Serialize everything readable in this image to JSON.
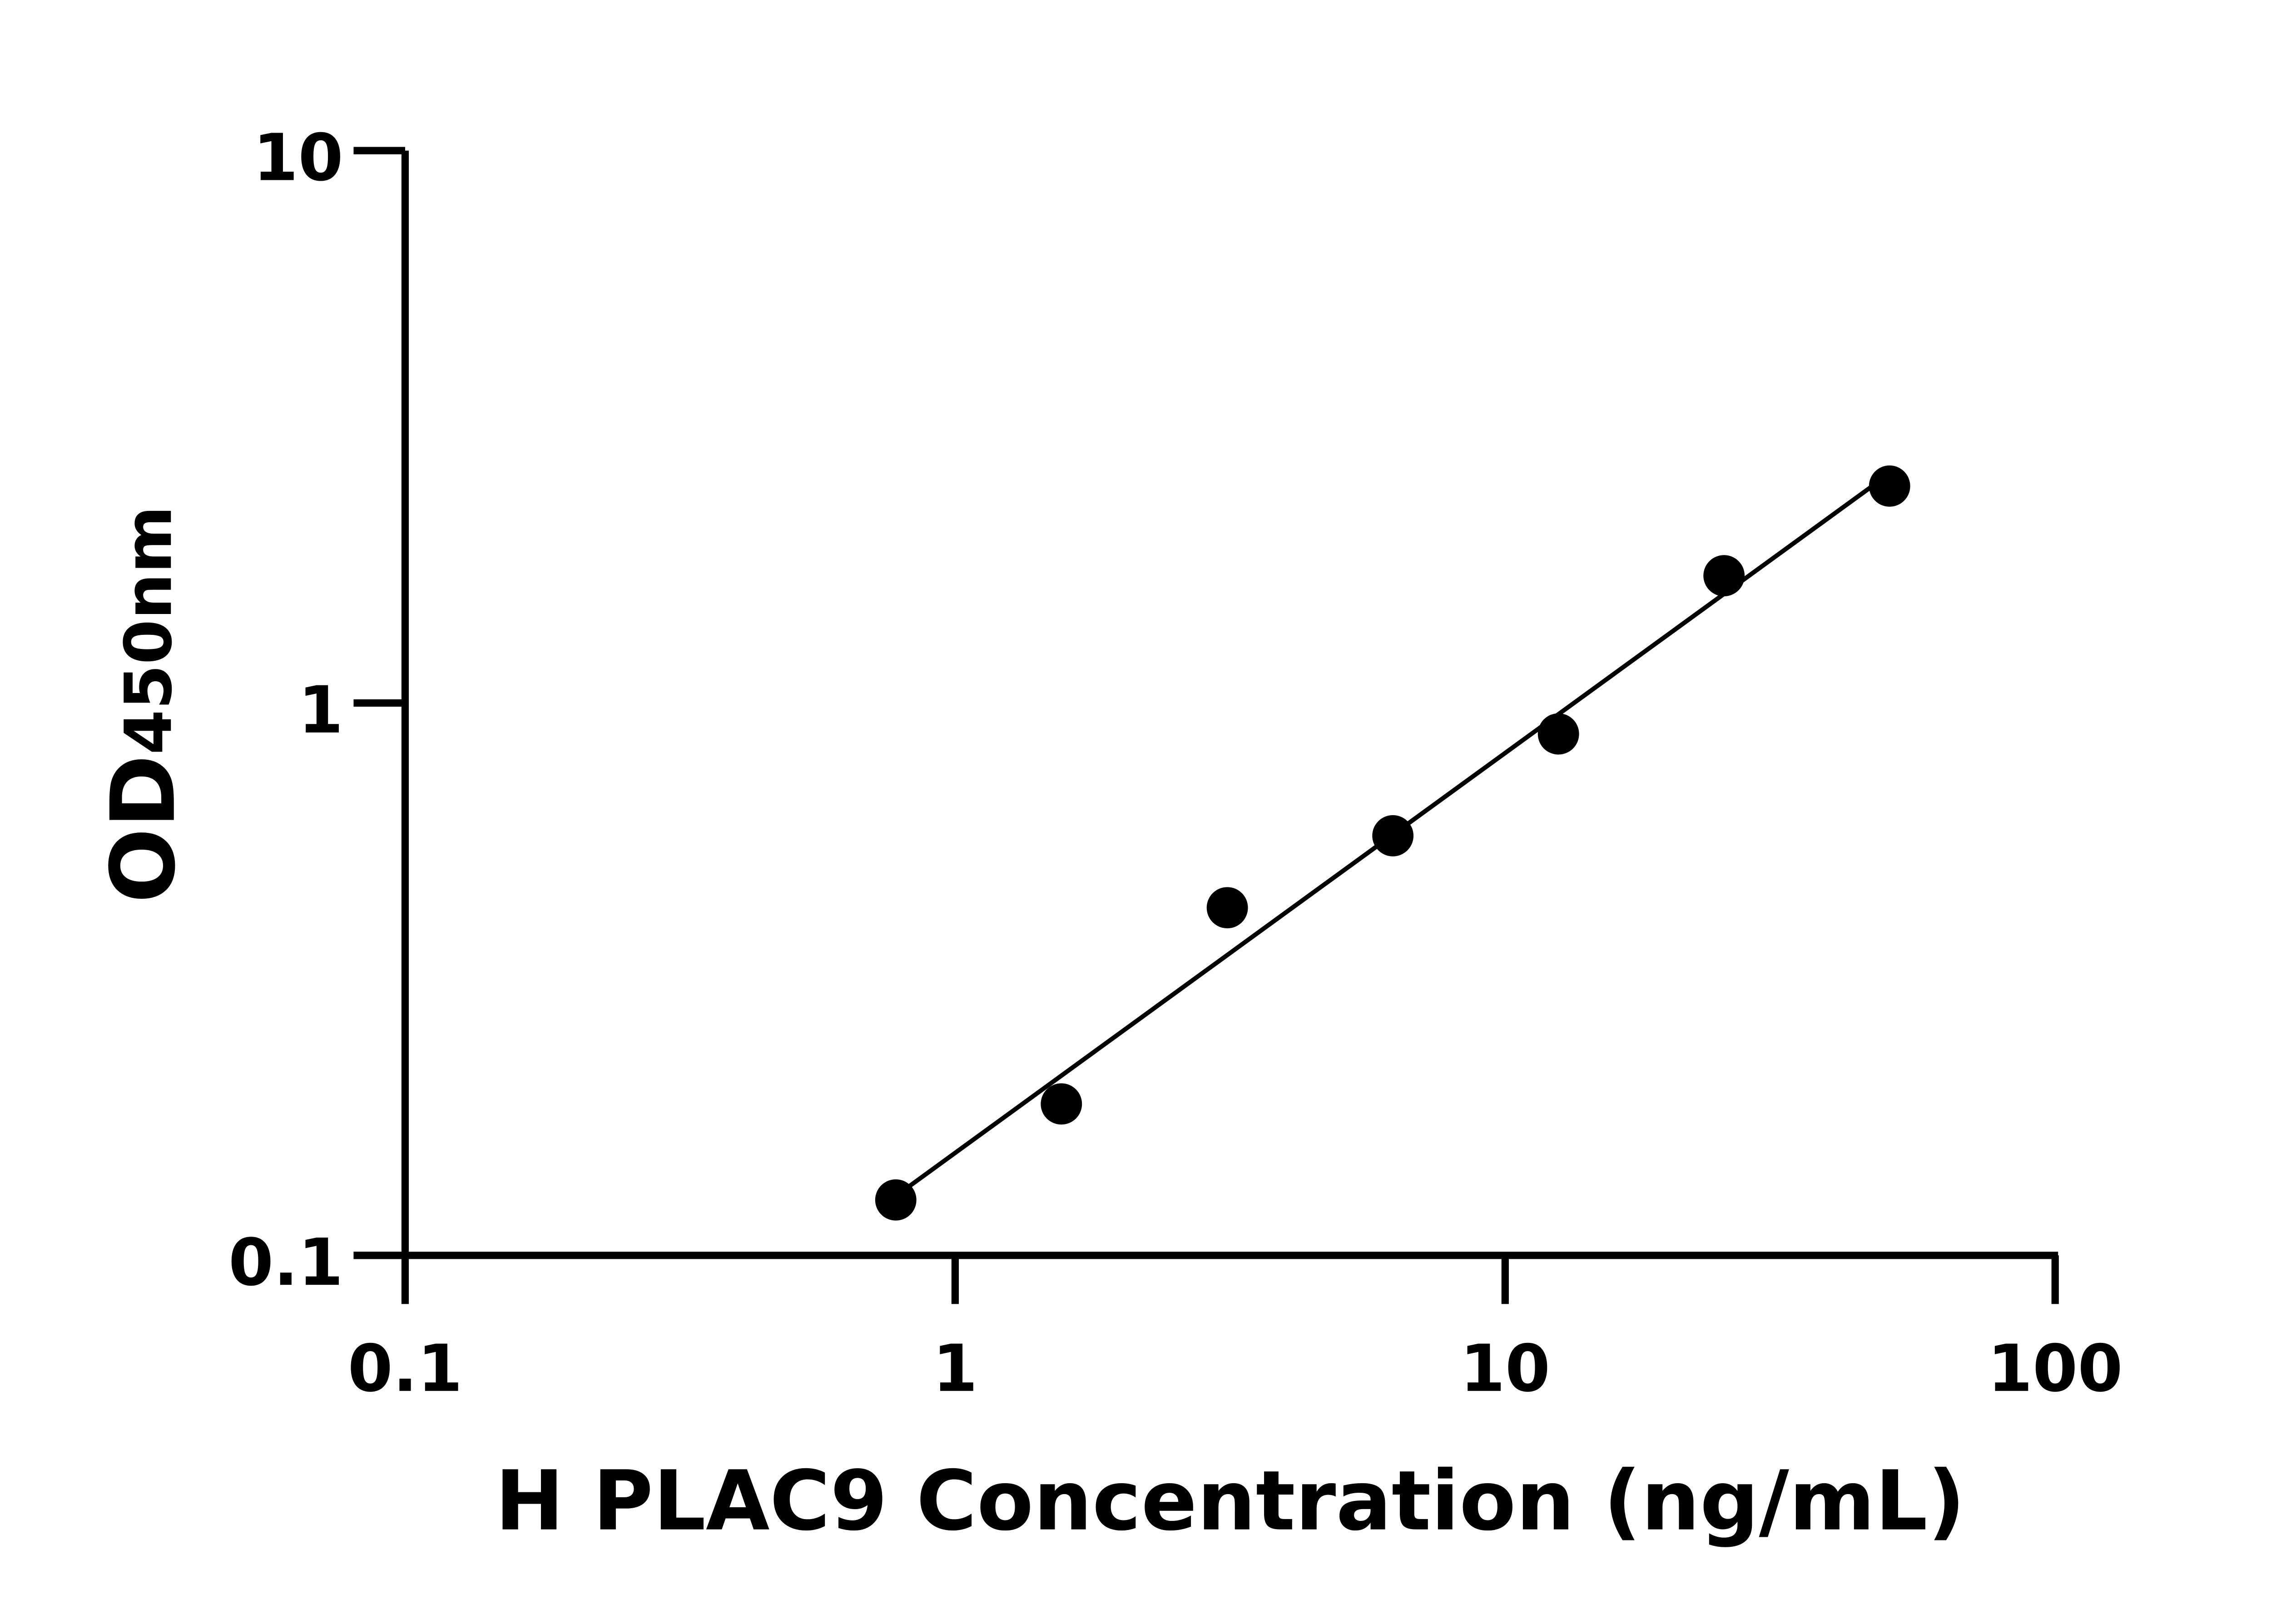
{
  "chart_data": {
    "type": "scatter",
    "title": "",
    "xlabel": "H PLAC9 Concentration (ng/mL)",
    "ylabel_main": "OD",
    "ylabel_sub": "450nm",
    "x_scale": "log",
    "y_scale": "log",
    "xlim": [
      0.1,
      100
    ],
    "ylim": [
      0.1,
      10
    ],
    "x_ticks": [
      "0.1",
      "1",
      "10",
      "100"
    ],
    "y_ticks": [
      "0.1",
      "1",
      "10"
    ],
    "x_tick_values": [
      0.1,
      1,
      10,
      100
    ],
    "y_tick_values": [
      0.1,
      1,
      10
    ],
    "grid": false,
    "legend": "none",
    "points": {
      "x": [
        0.78,
        1.56,
        3.125,
        6.25,
        12.5,
        25,
        50
      ],
      "y": [
        0.126,
        0.188,
        0.426,
        0.575,
        0.879,
        1.7,
        2.47
      ]
    },
    "fit": "linear regression in log-log space",
    "colors": {
      "points": "#000000",
      "line": "#000000"
    }
  }
}
